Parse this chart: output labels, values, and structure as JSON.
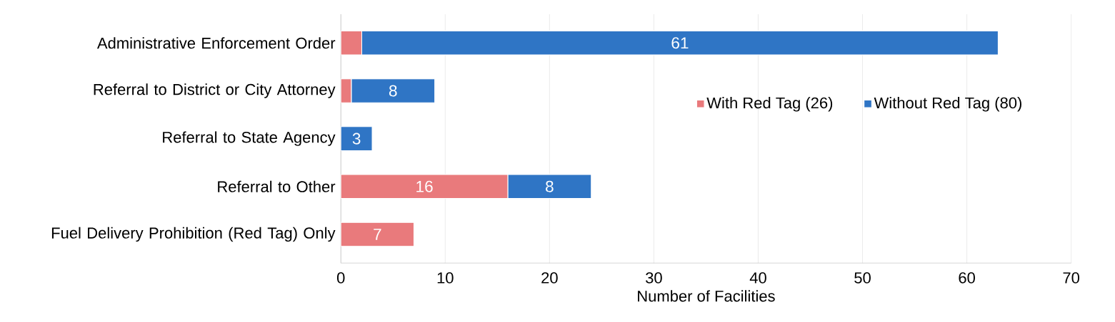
{
  "chart_data": {
    "type": "bar",
    "orientation": "horizontal",
    "stacked": true,
    "xlabel": "Number of Facilities",
    "categories": [
      "Administrative Enforcement Order",
      "Referral to District or City Attorney",
      "Referral to State Agency",
      "Referral to Other",
      "Fuel Delivery Prohibition (Red Tag) Only"
    ],
    "series": [
      {
        "name": "With Red Tag (26)",
        "color": "#e97a7c",
        "values": [
          2,
          1,
          0,
          16,
          7
        ],
        "value_labels": [
          null,
          null,
          null,
          "16",
          "7"
        ]
      },
      {
        "name": "Without Red Tag (80)",
        "color": "#2f75c5",
        "values": [
          61,
          8,
          3,
          8,
          0
        ],
        "value_labels": [
          "61",
          "8",
          "3",
          "8",
          null
        ]
      }
    ],
    "xlim": [
      0,
      70
    ],
    "xticks": [
      0,
      10,
      20,
      30,
      40,
      50,
      60,
      70
    ],
    "grid": "x",
    "legend": "right"
  }
}
